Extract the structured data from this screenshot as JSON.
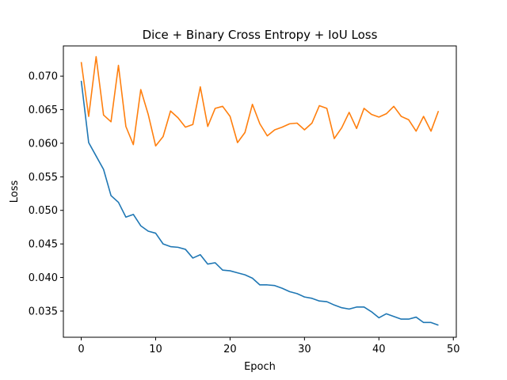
{
  "chart_data": {
    "type": "line",
    "title": "Dice + Binary Cross Entropy + IoU Loss",
    "xlabel": "Epoch",
    "ylabel": "Loss",
    "xlim": [
      -2.4,
      50.4
    ],
    "ylim": [
      0.0311,
      0.0745
    ],
    "xticks": [
      0,
      10,
      20,
      30,
      40,
      50
    ],
    "yticks": [
      0.035,
      0.04,
      0.045,
      0.05,
      0.055,
      0.06,
      0.065,
      0.07
    ],
    "ytick_format": 3,
    "grid": false,
    "legend": "none",
    "x": [
      0,
      1,
      2,
      3,
      4,
      5,
      6,
      7,
      8,
      9,
      10,
      11,
      12,
      13,
      14,
      15,
      16,
      17,
      18,
      19,
      20,
      21,
      22,
      23,
      24,
      25,
      26,
      27,
      28,
      29,
      30,
      31,
      32,
      33,
      34,
      35,
      36,
      37,
      38,
      39,
      40,
      41,
      42,
      43,
      44,
      45,
      46,
      47,
      48
    ],
    "series": [
      {
        "color": "#1f77b4",
        "values": [
          0.0693,
          0.0601,
          0.0581,
          0.0561,
          0.0522,
          0.0512,
          0.049,
          0.0494,
          0.0477,
          0.0469,
          0.0466,
          0.045,
          0.0446,
          0.0445,
          0.0442,
          0.0429,
          0.0434,
          0.042,
          0.0422,
          0.0411,
          0.041,
          0.0407,
          0.0404,
          0.0399,
          0.0389,
          0.0389,
          0.0388,
          0.0384,
          0.0379,
          0.0376,
          0.0371,
          0.0369,
          0.0365,
          0.0364,
          0.0359,
          0.0355,
          0.0353,
          0.0356,
          0.0356,
          0.0349,
          0.034,
          0.0346,
          0.0342,
          0.0338,
          0.0338,
          0.0341,
          0.0333,
          0.0333,
          0.0329
        ]
      },
      {
        "color": "#ff7f0e",
        "values": [
          0.0721,
          0.064,
          0.0729,
          0.0642,
          0.0632,
          0.0716,
          0.0625,
          0.0598,
          0.068,
          0.0643,
          0.0596,
          0.061,
          0.0648,
          0.0638,
          0.0624,
          0.0628,
          0.0684,
          0.0625,
          0.0652,
          0.0655,
          0.064,
          0.0601,
          0.0616,
          0.0658,
          0.0629,
          0.0611,
          0.062,
          0.0624,
          0.0629,
          0.063,
          0.062,
          0.063,
          0.0656,
          0.0652,
          0.0607,
          0.0623,
          0.0646,
          0.0622,
          0.0652,
          0.0643,
          0.0639,
          0.0644,
          0.0655,
          0.064,
          0.0635,
          0.0618,
          0.064,
          0.0618,
          0.0648
        ]
      }
    ]
  }
}
